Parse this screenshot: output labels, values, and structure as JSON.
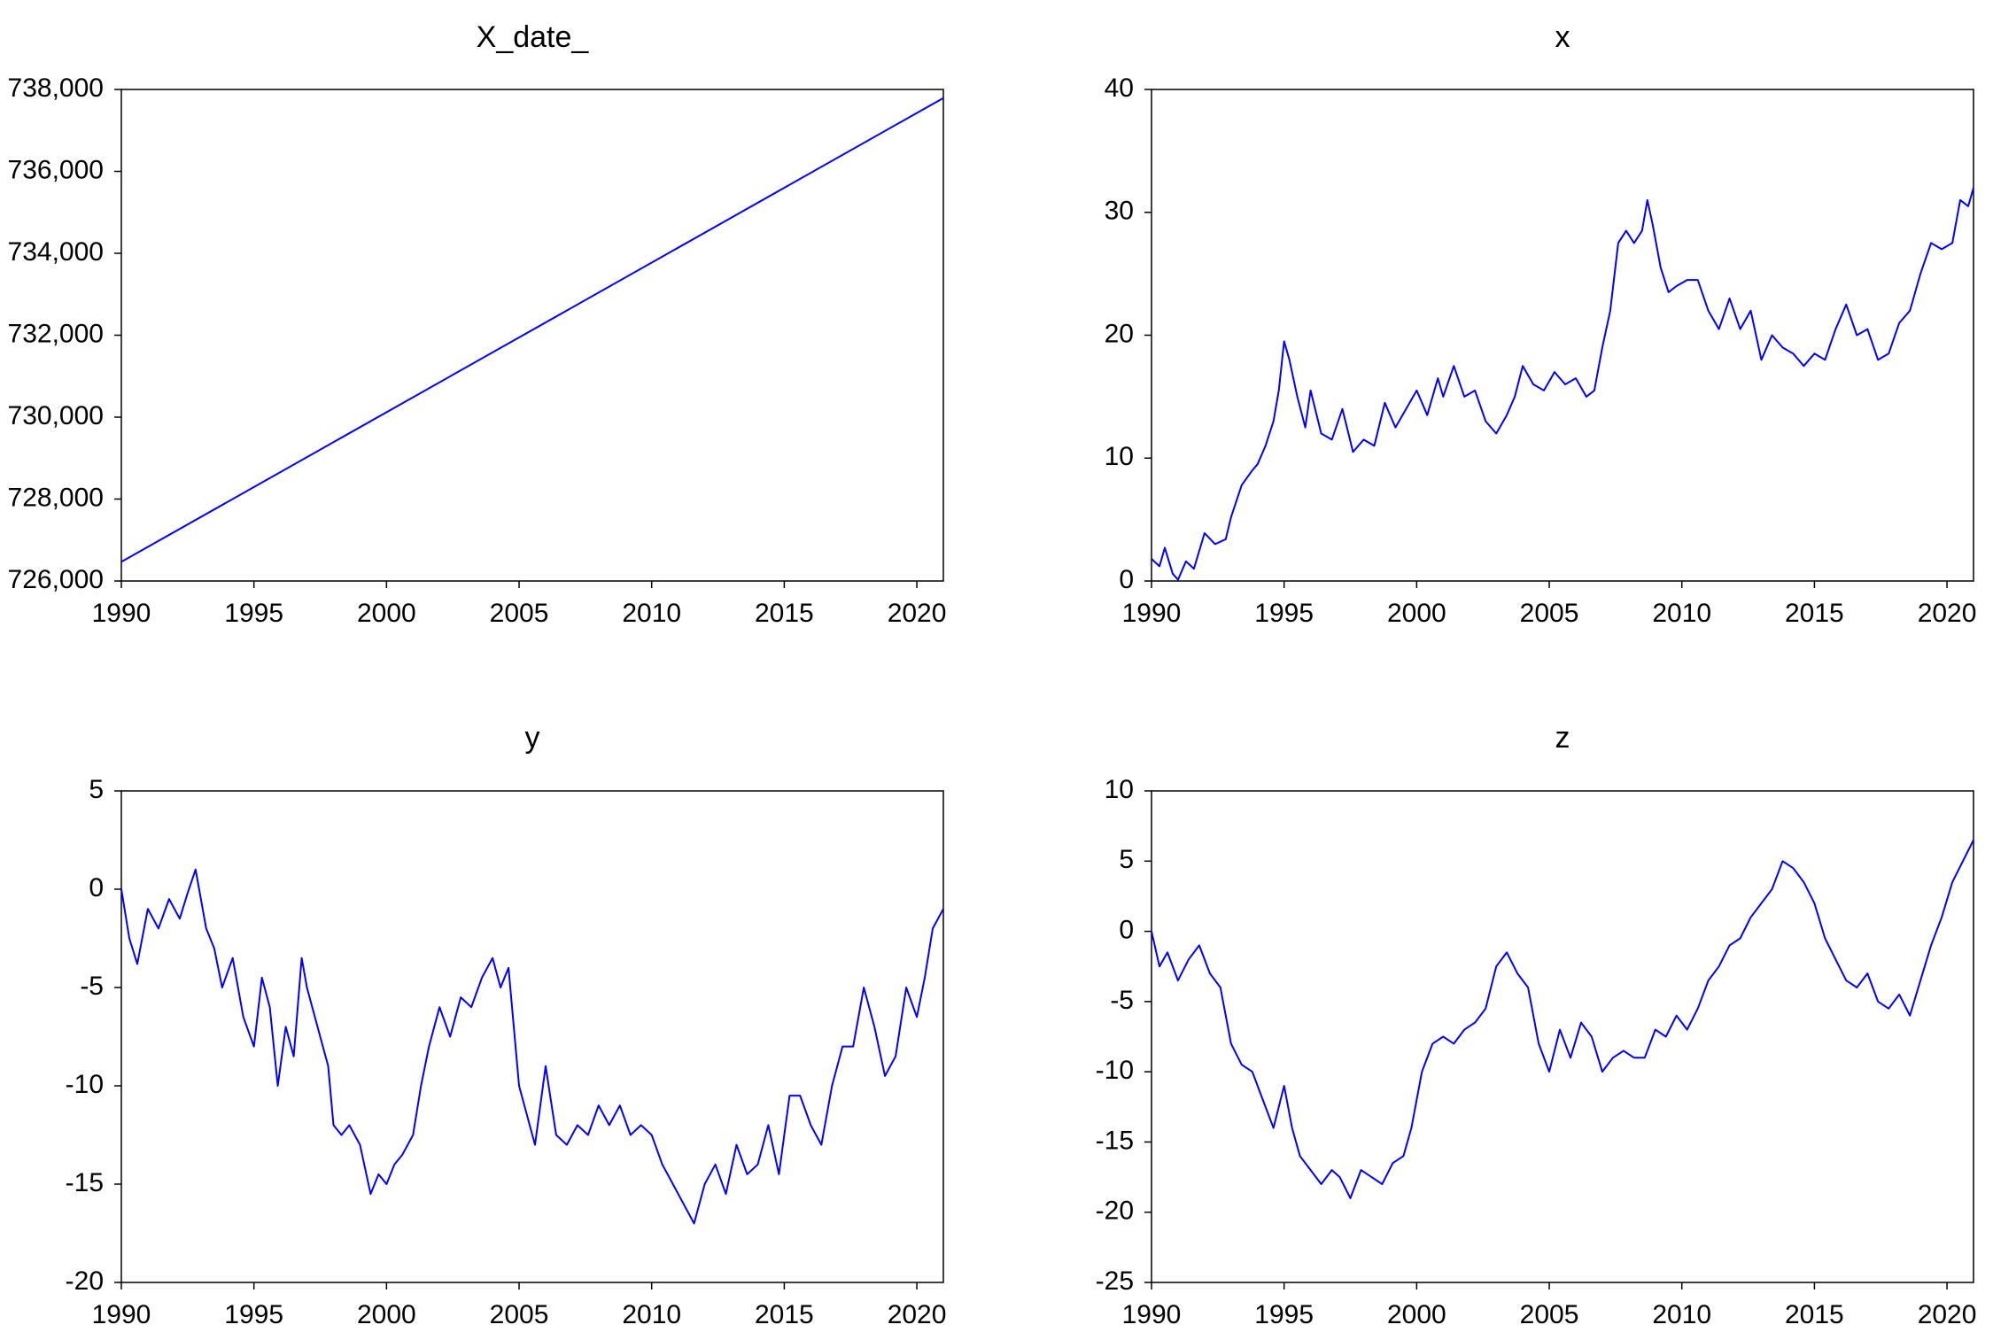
{
  "line_color": "#0000ff",
  "chart_data": [
    {
      "type": "line",
      "title": "X_date_",
      "xlim": [
        1990,
        2021
      ],
      "ylim": [
        726000,
        738000
      ],
      "xticks": [
        1990,
        1995,
        2000,
        2005,
        2010,
        2015,
        2020
      ],
      "yticks": [
        726000,
        728000,
        730000,
        732000,
        734000,
        736000,
        738000
      ],
      "yticklabels": [
        "726,000",
        "728,000",
        "730,000",
        "732,000",
        "734,000",
        "736,000",
        "738,000"
      ],
      "grid": false,
      "series": [
        {
          "x": [
            1990,
            2021
          ],
          "y": [
            726468,
            737790
          ]
        }
      ]
    },
    {
      "type": "line",
      "title": "x",
      "xlim": [
        1990,
        2021
      ],
      "ylim": [
        0,
        40
      ],
      "xticks": [
        1990,
        1995,
        2000,
        2005,
        2010,
        2015,
        2020
      ],
      "yticks": [
        0,
        10,
        20,
        30,
        40
      ],
      "yticklabels": [
        "0",
        "10",
        "20",
        "30",
        "40"
      ],
      "grid": false,
      "series": [
        {
          "x": [
            1990.0,
            1990.3,
            1990.5,
            1990.8,
            1991.0,
            1991.3,
            1991.6,
            1992.0,
            1992.4,
            1992.8,
            1993.0,
            1993.4,
            1993.8,
            1994.0,
            1994.3,
            1994.6,
            1994.8,
            1995.0,
            1995.2,
            1995.5,
            1995.8,
            1996.0,
            1996.4,
            1996.8,
            1997.2,
            1997.6,
            1998.0,
            1998.4,
            1998.8,
            1999.2,
            1999.6,
            2000.0,
            2000.4,
            2000.8,
            2001.0,
            2001.4,
            2001.8,
            2002.2,
            2002.6,
            2003.0,
            2003.4,
            2003.7,
            2004.0,
            2004.4,
            2004.8,
            2005.2,
            2005.6,
            2006.0,
            2006.4,
            2006.7,
            2007.0,
            2007.3,
            2007.6,
            2007.9,
            2008.2,
            2008.5,
            2008.7,
            2008.9,
            2009.2,
            2009.5,
            2009.8,
            2010.2,
            2010.6,
            2011.0,
            2011.4,
            2011.8,
            2012.2,
            2012.6,
            2013.0,
            2013.4,
            2013.8,
            2014.2,
            2014.6,
            2015.0,
            2015.4,
            2015.8,
            2016.2,
            2016.6,
            2017.0,
            2017.4,
            2017.8,
            2018.2,
            2018.6,
            2019.0,
            2019.4,
            2019.8,
            2020.2,
            2020.5,
            2020.8,
            2021.0
          ],
          "y": [
            1.8,
            1.2,
            2.7,
            0.6,
            0.1,
            1.6,
            1.0,
            3.9,
            3.0,
            3.4,
            5.2,
            7.8,
            9.0,
            9.5,
            11.0,
            13.0,
            15.5,
            19.5,
            18.0,
            15.0,
            12.5,
            15.5,
            12.0,
            11.5,
            14.0,
            10.5,
            11.5,
            11.0,
            14.5,
            12.5,
            14.0,
            15.5,
            13.5,
            16.5,
            15.0,
            17.5,
            15.0,
            15.5,
            13.0,
            12.0,
            13.5,
            15.0,
            17.5,
            16.0,
            15.5,
            17.0,
            16.0,
            16.5,
            15.0,
            15.5,
            19.0,
            22.0,
            27.5,
            28.5,
            27.5,
            28.5,
            31.0,
            29.0,
            25.5,
            23.5,
            24.0,
            24.5,
            24.5,
            22.0,
            20.5,
            23.0,
            20.5,
            22.0,
            18.0,
            20.0,
            19.0,
            18.5,
            17.5,
            18.5,
            18.0,
            20.5,
            22.5,
            20.0,
            20.5,
            18.0,
            18.5,
            21.0,
            22.0,
            25.0,
            27.5,
            27.0,
            27.5,
            31.0,
            30.5,
            32.0
          ]
        }
      ]
    },
    {
      "type": "line",
      "title": "y",
      "xlim": [
        1990,
        2021
      ],
      "ylim": [
        -20,
        5
      ],
      "xticks": [
        1990,
        1995,
        2000,
        2005,
        2010,
        2015,
        2020
      ],
      "yticks": [
        -20,
        -15,
        -10,
        -5,
        0,
        5
      ],
      "yticklabels": [
        "-20",
        "-15",
        "-10",
        "-5",
        "0",
        "5"
      ],
      "grid": false,
      "series": [
        {
          "x": [
            1990.0,
            1990.3,
            1990.6,
            1991.0,
            1991.4,
            1991.8,
            1992.2,
            1992.5,
            1992.8,
            1993.2,
            1993.5,
            1993.8,
            1994.2,
            1994.6,
            1995.0,
            1995.3,
            1995.6,
            1995.9,
            1996.2,
            1996.5,
            1996.8,
            1997.0,
            1997.4,
            1997.8,
            1998.0,
            1998.3,
            1998.6,
            1999.0,
            1999.4,
            1999.7,
            2000.0,
            2000.3,
            2000.6,
            2001.0,
            2001.3,
            2001.6,
            2002.0,
            2002.4,
            2002.8,
            2003.2,
            2003.6,
            2004.0,
            2004.3,
            2004.6,
            2005.0,
            2005.3,
            2005.6,
            2006.0,
            2006.4,
            2006.8,
            2007.2,
            2007.6,
            2008.0,
            2008.4,
            2008.8,
            2009.2,
            2009.6,
            2010.0,
            2010.4,
            2010.8,
            2011.2,
            2011.6,
            2012.0,
            2012.4,
            2012.8,
            2013.2,
            2013.6,
            2014.0,
            2014.4,
            2014.8,
            2015.2,
            2015.6,
            2016.0,
            2016.4,
            2016.8,
            2017.2,
            2017.6,
            2018.0,
            2018.4,
            2018.8,
            2019.2,
            2019.6,
            2020.0,
            2020.3,
            2020.6,
            2021.0
          ],
          "y": [
            0.0,
            -2.5,
            -3.8,
            -1.0,
            -2.0,
            -0.5,
            -1.5,
            -0.2,
            1.0,
            -2.0,
            -3.0,
            -5.0,
            -3.5,
            -6.5,
            -8.0,
            -4.5,
            -6.0,
            -10.0,
            -7.0,
            -8.5,
            -3.5,
            -5.0,
            -7.0,
            -9.0,
            -12.0,
            -12.5,
            -12.0,
            -13.0,
            -15.5,
            -14.5,
            -15.0,
            -14.0,
            -13.5,
            -12.5,
            -10.0,
            -8.0,
            -6.0,
            -7.5,
            -5.5,
            -6.0,
            -4.5,
            -3.5,
            -5.0,
            -4.0,
            -10.0,
            -11.5,
            -13.0,
            -9.0,
            -12.5,
            -13.0,
            -12.0,
            -12.5,
            -11.0,
            -12.0,
            -11.0,
            -12.5,
            -12.0,
            -12.5,
            -14.0,
            -15.0,
            -16.0,
            -17.0,
            -15.0,
            -14.0,
            -15.5,
            -13.0,
            -14.5,
            -14.0,
            -12.0,
            -14.5,
            -10.5,
            -10.5,
            -12.0,
            -13.0,
            -10.0,
            -8.0,
            -8.0,
            -5.0,
            -7.0,
            -9.5,
            -8.5,
            -5.0,
            -6.5,
            -4.5,
            -2.0,
            -1.0
          ]
        }
      ]
    },
    {
      "type": "line",
      "title": "z",
      "xlim": [
        1990,
        2021
      ],
      "ylim": [
        -25,
        10
      ],
      "xticks": [
        1990,
        1995,
        2000,
        2005,
        2010,
        2015,
        2020
      ],
      "yticks": [
        -25,
        -20,
        -15,
        -10,
        -5,
        0,
        5,
        10
      ],
      "yticklabels": [
        "-25",
        "-20",
        "-15",
        "-10",
        "-5",
        "0",
        "5",
        "10"
      ],
      "grid": false,
      "series": [
        {
          "x": [
            1990.0,
            1990.3,
            1990.6,
            1991.0,
            1991.4,
            1991.8,
            1992.2,
            1992.6,
            1993.0,
            1993.4,
            1993.8,
            1994.2,
            1994.6,
            1995.0,
            1995.3,
            1995.6,
            1996.0,
            1996.4,
            1996.8,
            1997.1,
            1997.5,
            1997.9,
            1998.3,
            1998.7,
            1999.1,
            1999.5,
            1999.8,
            2000.2,
            2000.6,
            2001.0,
            2001.4,
            2001.8,
            2002.2,
            2002.6,
            2003.0,
            2003.4,
            2003.8,
            2004.2,
            2004.6,
            2005.0,
            2005.4,
            2005.8,
            2006.2,
            2006.6,
            2007.0,
            2007.4,
            2007.8,
            2008.2,
            2008.6,
            2009.0,
            2009.4,
            2009.8,
            2010.2,
            2010.6,
            2011.0,
            2011.4,
            2011.8,
            2012.2,
            2012.6,
            2013.0,
            2013.4,
            2013.8,
            2014.2,
            2014.6,
            2015.0,
            2015.4,
            2015.8,
            2016.2,
            2016.6,
            2017.0,
            2017.4,
            2017.8,
            2018.2,
            2018.6,
            2019.0,
            2019.4,
            2019.8,
            2020.2,
            2020.6,
            2021.0
          ],
          "y": [
            0.0,
            -2.5,
            -1.5,
            -3.5,
            -2.0,
            -1.0,
            -3.0,
            -4.0,
            -8.0,
            -9.5,
            -10.0,
            -12.0,
            -14.0,
            -11.0,
            -14.0,
            -16.0,
            -17.0,
            -18.0,
            -17.0,
            -17.5,
            -19.0,
            -17.0,
            -17.5,
            -18.0,
            -16.5,
            -16.0,
            -14.0,
            -10.0,
            -8.0,
            -7.5,
            -8.0,
            -7.0,
            -6.5,
            -5.5,
            -2.5,
            -1.5,
            -3.0,
            -4.0,
            -8.0,
            -10.0,
            -7.0,
            -9.0,
            -6.5,
            -7.5,
            -10.0,
            -9.0,
            -8.5,
            -9.0,
            -9.0,
            -7.0,
            -7.5,
            -6.0,
            -7.0,
            -5.5,
            -3.5,
            -2.5,
            -1.0,
            -0.5,
            1.0,
            2.0,
            3.0,
            5.0,
            4.5,
            3.5,
            2.0,
            -0.5,
            -2.0,
            -3.5,
            -4.0,
            -3.0,
            -5.0,
            -5.5,
            -4.5,
            -6.0,
            -3.5,
            -1.0,
            1.0,
            3.5,
            5.0,
            6.5
          ]
        }
      ]
    }
  ]
}
